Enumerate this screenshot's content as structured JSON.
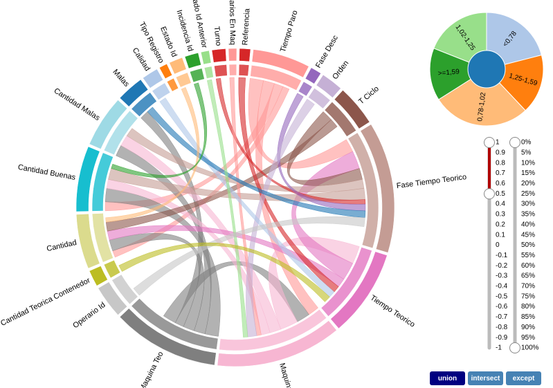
{
  "chord": {
    "groups": [
      "Turno",
      "Operarios En Maq",
      "Referencia",
      "Tiempo Paro",
      "Fase Desc",
      "Orden",
      "T Ciclo",
      "Fase Tiempo Teorico",
      "Tiempo Teorico",
      "Maquina",
      "Maquina Teo",
      "Operario Id",
      "Cantidad Teorica Contenedor",
      "Cantidad",
      "Cantidad Buenas",
      "Cantidad Malas",
      "Malas",
      "Calidad",
      "Tipo Registro",
      "Estado Id",
      "Incidencia Id",
      "Estado Id Anterior"
    ],
    "values": [
      6,
      4,
      5,
      22,
      5,
      9,
      16,
      49,
      33,
      47,
      40,
      13,
      7,
      21,
      25,
      20,
      11,
      7,
      4,
      6,
      6,
      4
    ],
    "colors": [
      "#d62728",
      "#ff9896",
      "#d62728",
      "#ff9896",
      "#9467bd",
      "#c5b0d5",
      "#8c564b",
      "#c49c94",
      "#e377c2",
      "#f7b6d2",
      "#7f7f7f",
      "#c7c7c7",
      "#bcbd22",
      "#dbdb8d",
      "#17becf",
      "#9edae5",
      "#1f77b4",
      "#aec7e8",
      "#ff7f0e",
      "#ffbb78",
      "#2ca02c",
      "#98df8a"
    ],
    "links": [
      [
        3,
        7,
        6
      ],
      [
        3,
        9,
        5
      ],
      [
        3,
        14,
        4
      ],
      [
        3,
        13,
        3
      ],
      [
        10,
        14,
        6
      ],
      [
        10,
        15,
        5
      ],
      [
        10,
        13,
        5
      ],
      [
        10,
        16,
        4
      ],
      [
        10,
        9,
        6
      ],
      [
        9,
        8,
        8
      ],
      [
        9,
        15,
        5
      ],
      [
        9,
        14,
        4
      ],
      [
        8,
        7,
        8
      ],
      [
        8,
        13,
        4
      ],
      [
        6,
        7,
        5
      ],
      [
        6,
        13,
        4
      ],
      [
        7,
        15,
        4
      ],
      [
        7,
        14,
        5
      ],
      [
        0,
        7,
        2
      ],
      [
        2,
        8,
        3
      ],
      [
        1,
        9,
        2
      ],
      [
        4,
        7,
        3
      ],
      [
        5,
        9,
        4
      ],
      [
        17,
        8,
        3
      ],
      [
        16,
        7,
        3
      ],
      [
        19,
        13,
        2
      ],
      [
        20,
        14,
        2
      ],
      [
        21,
        9,
        2
      ],
      [
        11,
        7,
        4
      ],
      [
        12,
        8,
        3
      ]
    ]
  },
  "pie": {
    "labels": [
      "<0,78",
      "1,25-1,59",
      "0,78-1,02",
      ">=1,59",
      "1,02-1,25"
    ],
    "values": [
      21,
      17,
      28,
      15,
      19
    ],
    "colors": [
      "#aec7e8",
      "#ff7f0e",
      "#ffbb78",
      "#2ca02c",
      "#98df8a"
    ],
    "center_color": "#1f77b4"
  },
  "sliders": [
    {
      "labels": [
        1,
        0.9,
        0.8,
        0.7,
        0.6,
        0.5,
        0.4,
        0.3,
        0.2,
        0.1,
        0,
        -0.1,
        -0.2,
        -0.3,
        -0.4,
        -0.5,
        -0.6,
        -0.7,
        -0.8,
        -0.9,
        -1
      ],
      "range": [
        1,
        0.5
      ]
    },
    {
      "labels": [
        "0%",
        "5%",
        "10%",
        "15%",
        "20%",
        "25%",
        "30%",
        "35%",
        "40%",
        "45%",
        "50%",
        "55%",
        "60%",
        "65%",
        "70%",
        "75%",
        "80%",
        "85%",
        "90%",
        "95%",
        "100%"
      ],
      "range": [
        "0%",
        "100%"
      ]
    }
  ],
  "buttons": [
    "union",
    "intersect",
    "except"
  ]
}
